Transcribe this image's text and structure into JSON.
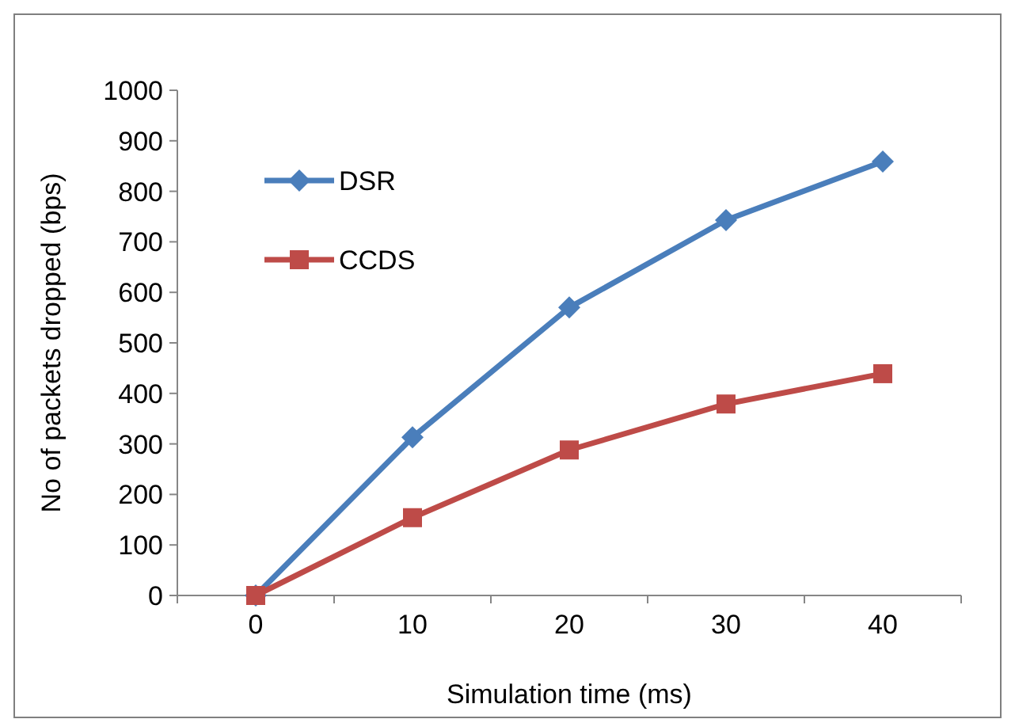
{
  "chart_data": {
    "type": "line",
    "xlabel": "Simulation time (ms)",
    "ylabel": "No of  packets dropped (bps)",
    "categories": [
      "0",
      "10",
      "20",
      "30",
      "40"
    ],
    "series": [
      {
        "name": "DSR",
        "color": "#4a7ebb",
        "marker": "diamond",
        "values": [
          0,
          313,
          570,
          743,
          859
        ]
      },
      {
        "name": "CCDS",
        "color": "#be4b48",
        "marker": "square",
        "values": [
          0,
          154,
          288,
          379,
          439
        ]
      }
    ],
    "ylim": [
      0,
      1000
    ],
    "yticks": [
      0,
      100,
      200,
      300,
      400,
      500,
      600,
      700,
      800,
      900,
      1000
    ],
    "grid": false,
    "legend": "top left"
  }
}
